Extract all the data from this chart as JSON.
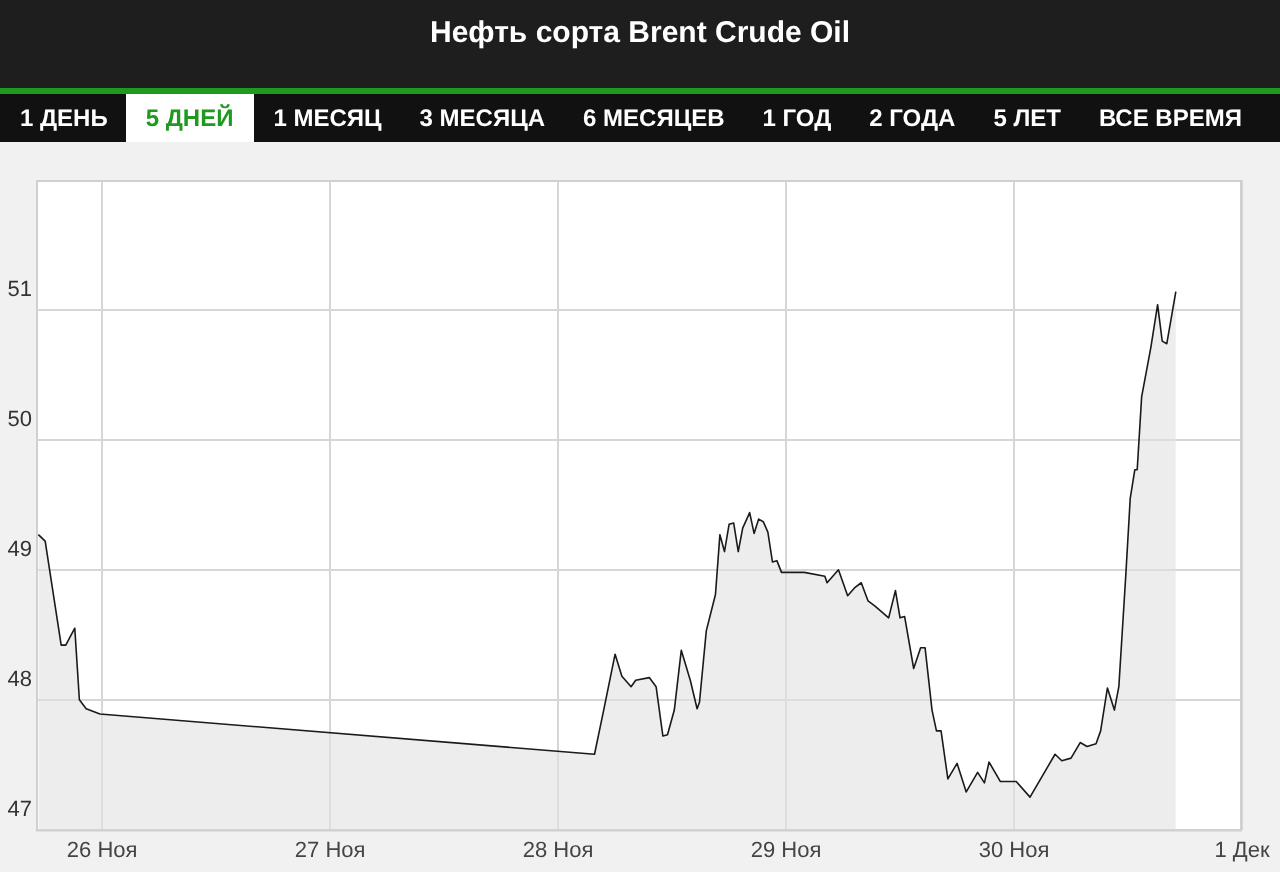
{
  "chart_data": {
    "type": "area",
    "title": "Нефть сорта Brent Crude Oil",
    "annotations": [
      "1 ДЕНЬ",
      "5 ДНЕЙ",
      "1 МЕСЯЦ",
      "3 МЕСЯЦА",
      "6 МЕСЯЦЕВ",
      "1 ГОД",
      "2 ГОДА",
      "5 ЛЕТ",
      "ВСЕ ВРЕМЯ"
    ],
    "x": [
      "--11-25T17:17",
      "--11-25T18:00",
      "--11-25T19:41",
      "--11-25T20:10",
      "--11-25T21:07",
      "--11-25T21:36",
      "--11-25T22:19",
      "--11-25T23:46",
      "--11-28T03:50",
      "--11-28T04:48",
      "--11-28T06:00",
      "--11-28T06:43",
      "--11-28T07:41",
      "--11-28T08:10",
      "--11-28T09:36",
      "--11-28T10:19",
      "--11-28T11:02",
      "--11-28T11:31",
      "--11-28T12:14",
      "--11-28T12:58",
      "--11-28T13:55",
      "--11-28T14:38",
      "--11-28T14:53",
      "--11-28T15:36",
      "--11-28T16:34",
      "--11-28T17:02",
      "--11-28T17:31",
      "--11-28T18:00",
      "--11-28T18:29",
      "--11-28T18:58",
      "--11-28T19:26",
      "--11-28T20:10",
      "--11-28T20:38",
      "--11-28T21:07",
      "--11-28T21:36",
      "--11-28T22:05",
      "--11-28T22:34",
      "--11-28T23:02",
      "--11-28T23:31",
      "--11-29T01:55",
      "--11-29T04:05",
      "--11-29T04:19",
      "--11-29T05:31",
      "--11-29T06:29",
      "--11-29T07:12",
      "--11-29T07:55",
      "--11-29T08:38",
      "--11-29T09:22",
      "--11-29T10:48",
      "--11-29T11:31",
      "--11-29T12:00",
      "--11-29T12:29",
      "--11-29T13:26",
      "--11-29T14:10",
      "--11-29T14:38",
      "--11-29T15:22",
      "--11-29T15:50",
      "--11-29T16:19",
      "--11-29T17:02",
      "--11-29T18:00",
      "--11-29T18:58",
      "--11-29T20:10",
      "--11-29T20:53",
      "--11-29T21:22",
      "--11-29T22:34",
      "--11-30T00:14",
      "--11-30T01:41",
      "--11-30T04:19",
      "--11-30T05:02",
      "--11-30T06:00",
      "--11-30T06:58",
      "--11-30T07:41",
      "--11-30T08:38",
      "--11-30T09:07",
      "--11-30T09:50",
      "--11-30T10:34",
      "--11-30T11:02",
      "--11-30T11:46",
      "--11-30T12:14",
      "--11-30T12:43",
      "--11-30T12:58",
      "--11-30T13:26",
      "--11-30T14:24",
      "--11-30T15:07",
      "--11-30T15:36",
      "--11-30T16:05",
      "--11-30T17:02"
    ],
    "series": [
      {
        "color": "#1a1a1a",
        "values": [
          49.27,
          49.22,
          48.42,
          48.42,
          48.55,
          48.0,
          47.93,
          47.89,
          47.58,
          47.92,
          48.35,
          48.18,
          48.1,
          48.15,
          48.17,
          48.1,
          47.72,
          47.73,
          47.92,
          48.38,
          48.15,
          47.93,
          47.98,
          48.53,
          48.81,
          49.27,
          49.14,
          49.35,
          49.36,
          49.14,
          49.32,
          49.44,
          49.28,
          49.39,
          49.37,
          49.29,
          49.06,
          49.07,
          48.98,
          48.98,
          48.95,
          48.9,
          49.0,
          48.8,
          48.86,
          48.9,
          48.76,
          48.72,
          48.63,
          48.84,
          48.63,
          48.64,
          48.24,
          48.4,
          48.4,
          47.92,
          47.76,
          47.76,
          47.39,
          47.51,
          47.29,
          47.44,
          47.36,
          47.52,
          47.37,
          47.37,
          47.25,
          47.58,
          47.53,
          47.55,
          47.67,
          47.64,
          47.66,
          47.76,
          48.09,
          47.92,
          48.1,
          48.96,
          49.55,
          49.77,
          49.77,
          50.33,
          50.71,
          51.04,
          50.76,
          50.74,
          51.14
        ]
      }
    ],
    "xlim": [
      "--11-25T17:02",
      "--12-01"
    ],
    "xticks": [
      {
        "value": "--11-26",
        "label": "26 Ноя"
      },
      {
        "value": "--11-27",
        "label": "27 Ноя"
      },
      {
        "value": "--11-28",
        "label": "28 Ноя"
      },
      {
        "value": "--11-29",
        "label": "29 Ноя"
      },
      {
        "value": "--11-30",
        "label": "30 Ноя"
      },
      {
        "value": "--12-01",
        "label": "1 Дек"
      }
    ],
    "ylim": [
      47,
      52
    ],
    "yticks": [
      47,
      48,
      49,
      50,
      51
    ],
    "grid": true,
    "legend": false,
    "marker": "none",
    "line_style": "solid"
  }
}
